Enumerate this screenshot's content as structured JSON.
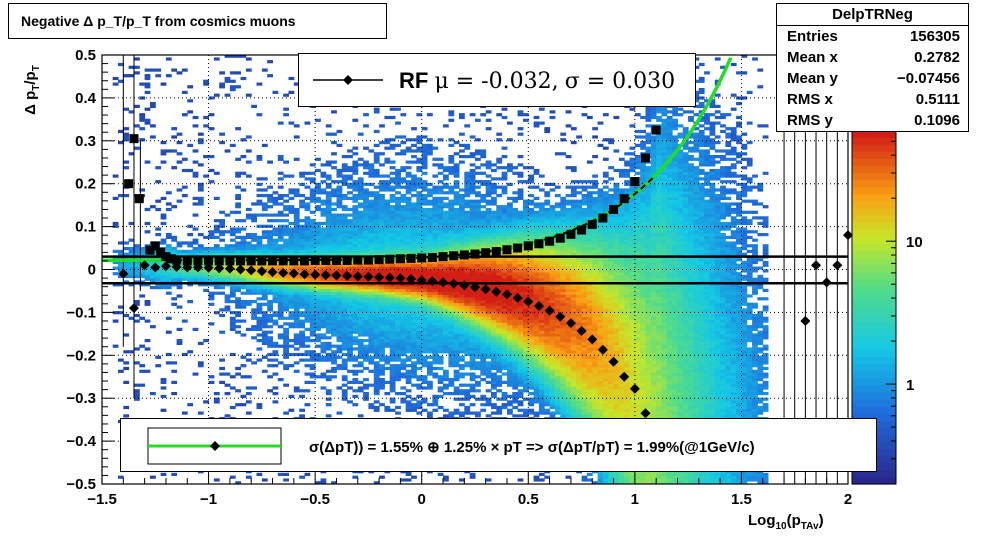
{
  "title": "Negative Δ p_T/p_T from cosmics muons",
  "stats": {
    "name": "DelpTRNeg",
    "rows": [
      {
        "label": "Entries",
        "value": "156305"
      },
      {
        "label": "Mean x",
        "value": "0.2782"
      },
      {
        "label": "Mean y",
        "value": "−0.07456"
      },
      {
        "label": "RMS x",
        "value": "0.5111"
      },
      {
        "label": "RMS y",
        "value": "0.1096"
      }
    ]
  },
  "rf_legend": {
    "label": "RF",
    "mu_text": "μ = -0.032,",
    "sigma_text": "σ =   0.030"
  },
  "fit_legend": {
    "text": "σ(ΔpT)) =  1.55% ⊕  1.25% × pT => σ(ΔpT/pT) =  1.99%(@1GeV/c)"
  },
  "colors": {
    "fit_curve": "#22dd22",
    "markers": "#000000",
    "hlines": "#000000"
  },
  "chart_data": {
    "type": "heatmap",
    "xlabel": "Log10(pTAv)",
    "ylabel": "Δ pT/pT",
    "xlim": [
      -1.5,
      2.0
    ],
    "ylim": [
      -0.5,
      0.5
    ],
    "x_ticks": [
      "−1.5",
      "−1",
      "−0.5",
      "0",
      "0.5",
      "1",
      "1.5",
      "2"
    ],
    "y_ticks": [
      "−0.5",
      "−0.4",
      "−0.3",
      "−0.2",
      "−0.1",
      "0",
      "0.1",
      "0.2",
      "0.3",
      "0.4",
      "0.5"
    ],
    "colorbar_ticks": [
      "1",
      "10"
    ],
    "colorbar_scale": "log",
    "grid": true,
    "hlines": [
      0.03,
      -0.032
    ],
    "sigma_points": [
      [
        -1.375,
        0.2
      ],
      [
        -1.35,
        0.305
      ],
      [
        -1.325,
        0.165
      ],
      [
        -1.275,
        0.045
      ],
      [
        -1.25,
        0.055
      ],
      [
        -1.225,
        0.04
      ],
      [
        -1.2,
        0.03
      ],
      [
        -1.175,
        0.025
      ],
      [
        -1.15,
        0.022
      ],
      [
        -1.1,
        0.02
      ],
      [
        -1.05,
        0.02
      ],
      [
        -1.0,
        0.02
      ],
      [
        -0.95,
        0.02
      ],
      [
        -0.9,
        0.02
      ],
      [
        -0.85,
        0.02
      ],
      [
        -0.8,
        0.02
      ],
      [
        -0.75,
        0.02
      ],
      [
        -0.7,
        0.02
      ],
      [
        -0.65,
        0.02
      ],
      [
        -0.6,
        0.02
      ],
      [
        -0.55,
        0.02
      ],
      [
        -0.5,
        0.021
      ],
      [
        -0.45,
        0.021
      ],
      [
        -0.4,
        0.021
      ],
      [
        -0.35,
        0.021
      ],
      [
        -0.3,
        0.022
      ],
      [
        -0.25,
        0.022
      ],
      [
        -0.2,
        0.023
      ],
      [
        -0.15,
        0.024
      ],
      [
        -0.1,
        0.025
      ],
      [
        -0.05,
        0.026
      ],
      [
        0.0,
        0.027
      ],
      [
        0.05,
        0.028
      ],
      [
        0.1,
        0.03
      ],
      [
        0.15,
        0.032
      ],
      [
        0.2,
        0.034
      ],
      [
        0.25,
        0.036
      ],
      [
        0.3,
        0.039
      ],
      [
        0.35,
        0.042
      ],
      [
        0.4,
        0.046
      ],
      [
        0.45,
        0.05
      ],
      [
        0.5,
        0.055
      ],
      [
        0.55,
        0.06
      ],
      [
        0.6,
        0.066
      ],
      [
        0.65,
        0.073
      ],
      [
        0.7,
        0.082
      ],
      [
        0.75,
        0.092
      ],
      [
        0.8,
        0.105
      ],
      [
        0.85,
        0.12
      ],
      [
        0.9,
        0.14
      ],
      [
        0.95,
        0.165
      ],
      [
        1.0,
        0.205
      ],
      [
        1.05,
        0.26
      ],
      [
        1.1,
        0.325
      ]
    ],
    "mean_points": [
      [
        -1.4,
        -0.01
      ],
      [
        -1.35,
        -0.09
      ],
      [
        -1.3,
        0.01
      ],
      [
        -1.25,
        0.005
      ],
      [
        -1.2,
        0.008
      ],
      [
        -1.15,
        0.006
      ],
      [
        -1.1,
        0.005
      ],
      [
        -1.05,
        0.005
      ],
      [
        -1.0,
        0.004
      ],
      [
        -0.95,
        0.003
      ],
      [
        -0.9,
        0.002
      ],
      [
        -0.85,
        0.0
      ],
      [
        -0.8,
        -0.002
      ],
      [
        -0.75,
        -0.004
      ],
      [
        -0.7,
        -0.006
      ],
      [
        -0.65,
        -0.008
      ],
      [
        -0.6,
        -0.009
      ],
      [
        -0.55,
        -0.011
      ],
      [
        -0.5,
        -0.012
      ],
      [
        -0.45,
        -0.013
      ],
      [
        -0.4,
        -0.014
      ],
      [
        -0.35,
        -0.015
      ],
      [
        -0.3,
        -0.016
      ],
      [
        -0.25,
        -0.017
      ],
      [
        -0.2,
        -0.018
      ],
      [
        -0.15,
        -0.019
      ],
      [
        -0.1,
        -0.02
      ],
      [
        -0.05,
        -0.022
      ],
      [
        0.0,
        -0.025
      ],
      [
        0.05,
        -0.027
      ],
      [
        0.1,
        -0.03
      ],
      [
        0.15,
        -0.033
      ],
      [
        0.2,
        -0.037
      ],
      [
        0.25,
        -0.041
      ],
      [
        0.3,
        -0.046
      ],
      [
        0.35,
        -0.052
      ],
      [
        0.4,
        -0.058
      ],
      [
        0.45,
        -0.066
      ],
      [
        0.5,
        -0.075
      ],
      [
        0.55,
        -0.085
      ],
      [
        0.6,
        -0.096
      ],
      [
        0.65,
        -0.11
      ],
      [
        0.7,
        -0.125
      ],
      [
        0.75,
        -0.143
      ],
      [
        0.8,
        -0.163
      ],
      [
        0.85,
        -0.187
      ],
      [
        0.9,
        -0.215
      ],
      [
        0.95,
        -0.25
      ],
      [
        1.0,
        -0.278
      ],
      [
        1.05,
        -0.335
      ],
      [
        1.8,
        -0.12
      ],
      [
        1.85,
        0.01
      ],
      [
        1.9,
        -0.03
      ],
      [
        1.95,
        0.01
      ],
      [
        2.0,
        0.08
      ]
    ],
    "fit": {
      "a_percent": 1.55,
      "b_percent": 1.25,
      "at_1GeV_percent": 1.99
    }
  }
}
